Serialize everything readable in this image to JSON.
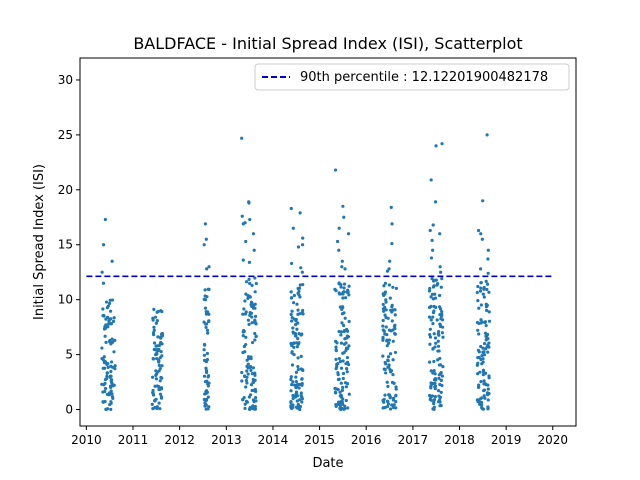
{
  "chart_data": {
    "type": "scatter",
    "title": "BALDFACE - Initial Spread Index (ISI), Scatterplot",
    "xlabel": "Date",
    "ylabel": "Initial Spread Index (ISI)",
    "xlim": [
      "2009-11-12",
      "2020-07-01"
    ],
    "ylim": [
      -1.5,
      32
    ],
    "xticks": [
      "2010",
      "2011",
      "2012",
      "2013",
      "2014",
      "2015",
      "2016",
      "2017",
      "2018",
      "2019",
      "2020"
    ],
    "yticks": [
      0,
      5,
      10,
      15,
      20,
      25,
      30
    ],
    "grid": false,
    "legend": {
      "position": "top-right",
      "entries": [
        "90th percentile : 12.12201900482178"
      ]
    },
    "colors": {
      "points": "#1f77b4",
      "percentile_line": "#0000cc"
    },
    "reference_line": {
      "y": 12.12201900482178,
      "x_range": [
        "2010-01-01",
        "2020-01-01"
      ],
      "style": "dashed",
      "label": "90th percentile : 12.12201900482178"
    },
    "seasons": [
      {
        "year": 2010,
        "x_range": [
          "2010-05-01",
          "2010-08-15"
        ],
        "y_max": 10.0,
        "count": 95,
        "outliers": [
          17.3,
          15.0,
          13.5,
          12.5,
          11.5
        ]
      },
      {
        "year": 2011,
        "x_range": [
          "2011-06-01",
          "2011-08-20"
        ],
        "y_max": 9.2,
        "count": 85,
        "outliers": []
      },
      {
        "year": 2012,
        "x_range": [
          "2012-07-10",
          "2012-08-20"
        ],
        "y_max": 11.5,
        "count": 55,
        "outliers": [
          16.9,
          15.5,
          15.0,
          13.0,
          12.8
        ]
      },
      {
        "year": 2013,
        "x_range": [
          "2013-05-01",
          "2013-08-25"
        ],
        "y_max": 12.0,
        "count": 110,
        "outliers": [
          24.7,
          18.9,
          18.8,
          17.6,
          17.3,
          17.0,
          16.9,
          16.0,
          15.3,
          14.5,
          13.6,
          13.4
        ]
      },
      {
        "year": 2014,
        "x_range": [
          "2014-05-20",
          "2014-08-25"
        ],
        "y_max": 12.0,
        "count": 110,
        "outliers": [
          18.3,
          17.9,
          16.5,
          15.6,
          15.0,
          14.8,
          13.3,
          12.9,
          12.5
        ]
      },
      {
        "year": 2015,
        "x_range": [
          "2015-05-01",
          "2015-08-25"
        ],
        "y_max": 12.0,
        "count": 115,
        "outliers": [
          21.8,
          18.5,
          17.5,
          16.5,
          16.0,
          15.3,
          14.5,
          13.5,
          13.0,
          12.8
        ]
      },
      {
        "year": 2016,
        "x_range": [
          "2016-05-10",
          "2016-08-25"
        ],
        "y_max": 11.5,
        "count": 105,
        "outliers": [
          18.4,
          16.9,
          15.1,
          13.5,
          12.8,
          12.6
        ]
      },
      {
        "year": 2017,
        "x_range": [
          "2017-05-10",
          "2017-08-25"
        ],
        "y_max": 12.0,
        "count": 115,
        "outliers": [
          24.2,
          24.0,
          20.9,
          18.9,
          16.8,
          16.3,
          16.0,
          15.4,
          14.5,
          13.8,
          13.0,
          12.5
        ]
      },
      {
        "year": 2018,
        "x_range": [
          "2018-05-20",
          "2018-08-25"
        ],
        "y_max": 12.0,
        "count": 105,
        "outliers": [
          25.0,
          19.0,
          16.3,
          16.0,
          15.5,
          14.5,
          13.7,
          12.8,
          12.4
        ]
      }
    ]
  }
}
